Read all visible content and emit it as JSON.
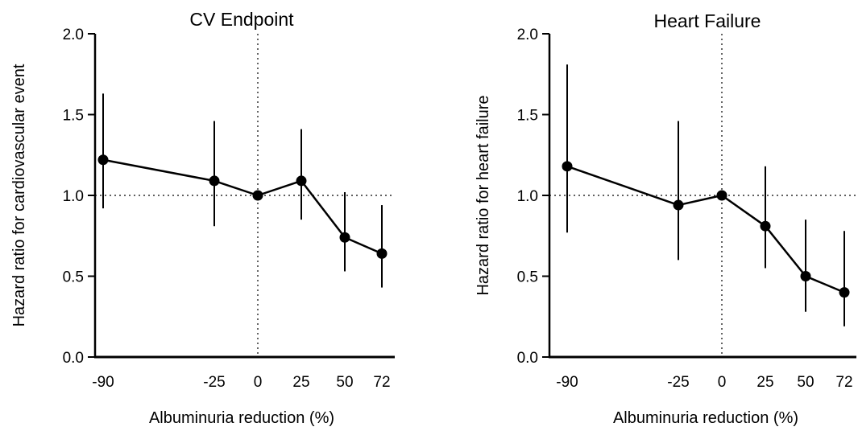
{
  "chart_data": [
    {
      "type": "line",
      "title": "CV Endpoint",
      "xlabel": "Albuminuria reduction (%)",
      "ylabel": "Hazard ratio for cardiovascular event",
      "categories": [
        "-90",
        "-25",
        "0",
        "25",
        "50",
        "72"
      ],
      "values": [
        1.22,
        1.09,
        1.0,
        1.09,
        0.74,
        0.64
      ],
      "ci_low": [
        0.92,
        0.81,
        1.0,
        0.85,
        0.53,
        0.43
      ],
      "ci_high": [
        1.63,
        1.46,
        1.0,
        1.41,
        1.02,
        0.94
      ],
      "ylim": [
        0.0,
        2.0
      ],
      "yticks": [
        "0.0",
        "0.5",
        "1.0",
        "1.5",
        "2.0"
      ],
      "reference_line_y": 1.0,
      "reference_line_x": "0",
      "grid": false
    },
    {
      "type": "line",
      "title": "Heart Failure",
      "xlabel": "Albuminuria reduction (%)",
      "ylabel": "Hazard ratio for heart failure",
      "categories": [
        "-90",
        "-25",
        "0",
        "25",
        "50",
        "72"
      ],
      "values": [
        1.18,
        0.94,
        1.0,
        0.81,
        0.5,
        0.4
      ],
      "ci_low": [
        0.77,
        0.6,
        1.0,
        0.55,
        0.28,
        0.19
      ],
      "ci_high": [
        1.81,
        1.46,
        1.0,
        1.18,
        0.85,
        0.78
      ],
      "ylim": [
        0.0,
        2.0
      ],
      "yticks": [
        "0.0",
        "0.5",
        "1.0",
        "1.5",
        "2.0"
      ],
      "reference_line_y": 1.0,
      "reference_line_x": "0",
      "grid": false
    }
  ]
}
